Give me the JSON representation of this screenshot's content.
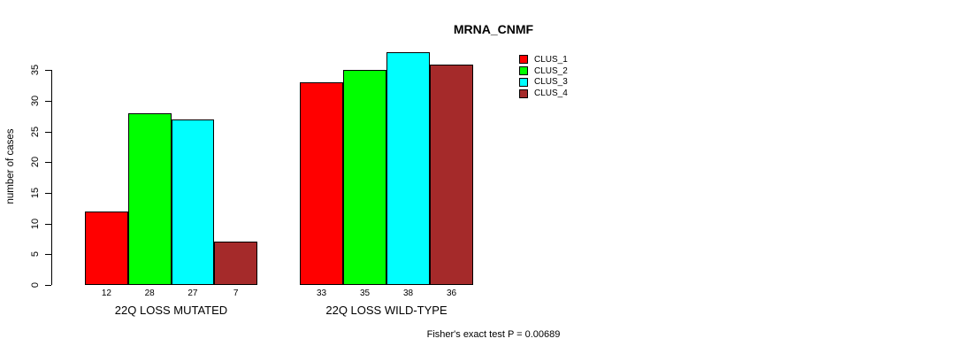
{
  "chart_data": {
    "type": "bar",
    "title": "MRNA_CNMF",
    "ylabel": "number of cases",
    "xlabel": "",
    "categories": [
      "22Q LOSS MUTATED",
      "22Q LOSS WILD-TYPE"
    ],
    "series": [
      {
        "name": "CLUS_1",
        "color": "#ff0000",
        "values": [
          12,
          33
        ]
      },
      {
        "name": "CLUS_2",
        "color": "#00ff00",
        "values": [
          28,
          35
        ]
      },
      {
        "name": "CLUS_3",
        "color": "#00ffff",
        "values": [
          27,
          38
        ]
      },
      {
        "name": "CLUS_4",
        "color": "#a52a2a",
        "values": [
          7,
          36
        ]
      }
    ],
    "yticks": [
      0,
      5,
      10,
      15,
      20,
      25,
      30,
      35
    ],
    "ylim": [
      0,
      38
    ],
    "bar_value_labels": [
      [
        12,
        28,
        27,
        7
      ],
      [
        33,
        35,
        38,
        36
      ]
    ],
    "legend_position": "top-right",
    "grid": false,
    "annotation": "Fisher's exact test P = 0.00689"
  }
}
